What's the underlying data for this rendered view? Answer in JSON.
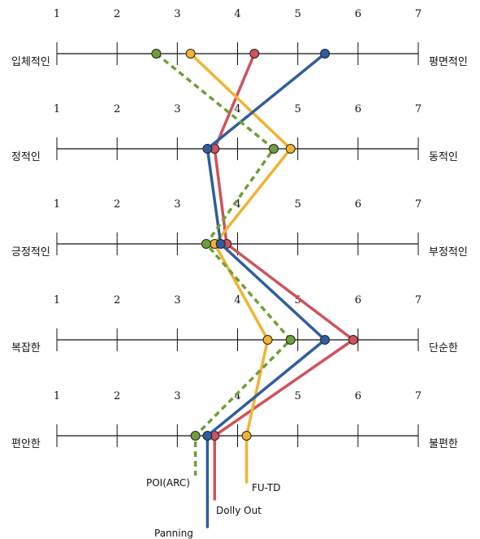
{
  "chart_data": {
    "type": "line",
    "scale_ticks": [
      "1",
      "2",
      "3",
      "4",
      "5",
      "6",
      "7"
    ],
    "xlim": [
      1,
      7
    ],
    "grid": false,
    "legend": "labels at bottom ends of lines",
    "scales": [
      {
        "left": "입체적인",
        "right": "평면적인"
      },
      {
        "left": "정적인",
        "right": "동적인"
      },
      {
        "left": "긍정적인",
        "right": "부정적인"
      },
      {
        "left": "복잡한",
        "right": "단순한"
      },
      {
        "left": "편안한",
        "right": "불편한"
      }
    ],
    "series": [
      {
        "name": "POI(ARC)",
        "color": "#6f9e3a",
        "dashed": true,
        "values": [
          2.65,
          4.6,
          3.48,
          4.88,
          3.3
        ]
      },
      {
        "name": "FU-TD",
        "color": "#f0b431",
        "dashed": false,
        "values": [
          3.22,
          4.88,
          3.62,
          4.5,
          4.15
        ]
      },
      {
        "name": "Dolly Out",
        "color": "#d0525a",
        "dashed": false,
        "values": [
          4.28,
          3.62,
          3.82,
          5.92,
          3.62
        ]
      },
      {
        "name": "Panning",
        "color": "#2f5e9e",
        "dashed": false,
        "values": [
          5.45,
          3.5,
          3.72,
          5.45,
          3.5
        ]
      }
    ]
  }
}
